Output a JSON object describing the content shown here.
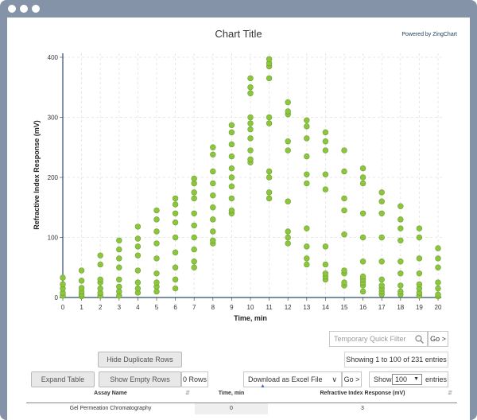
{
  "chart": {
    "title": "Chart Title",
    "powered_by": "Powered by ZingChart",
    "xlabel": "Time, min",
    "ylabel": "Refractive Index Response (mV)"
  },
  "chart_data": {
    "type": "scatter",
    "title": "Chart Title",
    "xlabel": "Time, min",
    "ylabel": "Refractive Index Response (mV)",
    "xlim": [
      0,
      20
    ],
    "ylim": [
      0,
      400
    ],
    "x_ticks": [
      "0",
      "1",
      "2",
      "3",
      "4",
      "5",
      "6",
      "7",
      "8",
      "9",
      "10",
      "11",
      "12",
      "13",
      "14",
      "15",
      "16",
      "17",
      "18",
      "19",
      "20"
    ],
    "y_ticks": [
      "0",
      "100",
      "200",
      "300",
      "400"
    ],
    "grid": true,
    "point_color": "#8cc63f",
    "points": [
      [
        0,
        3
      ],
      [
        0,
        8
      ],
      [
        0,
        15
      ],
      [
        0,
        22
      ],
      [
        0,
        33
      ],
      [
        1,
        2
      ],
      [
        1,
        5
      ],
      [
        1,
        10
      ],
      [
        1,
        16
      ],
      [
        1,
        28
      ],
      [
        1,
        45
      ],
      [
        2,
        3
      ],
      [
        2,
        8
      ],
      [
        2,
        15
      ],
      [
        2,
        25
      ],
      [
        2,
        30
      ],
      [
        2,
        55
      ],
      [
        2,
        70
      ],
      [
        3,
        3
      ],
      [
        3,
        10
      ],
      [
        3,
        18
      ],
      [
        3,
        30
      ],
      [
        3,
        50
      ],
      [
        3,
        65
      ],
      [
        3,
        80
      ],
      [
        3,
        95
      ],
      [
        4,
        8
      ],
      [
        4,
        15
      ],
      [
        4,
        25
      ],
      [
        4,
        45
      ],
      [
        4,
        70
      ],
      [
        4,
        85
      ],
      [
        4,
        98
      ],
      [
        4,
        118
      ],
      [
        5,
        10
      ],
      [
        5,
        18
      ],
      [
        5,
        25
      ],
      [
        5,
        40
      ],
      [
        5,
        65
      ],
      [
        5,
        90
      ],
      [
        5,
        110
      ],
      [
        5,
        130
      ],
      [
        5,
        145
      ],
      [
        6,
        15
      ],
      [
        6,
        30
      ],
      [
        6,
        50
      ],
      [
        6,
        75
      ],
      [
        6,
        100
      ],
      [
        6,
        125
      ],
      [
        6,
        140
      ],
      [
        6,
        155
      ],
      [
        6,
        165
      ],
      [
        7,
        50
      ],
      [
        7,
        60
      ],
      [
        7,
        80
      ],
      [
        7,
        100
      ],
      [
        7,
        120
      ],
      [
        7,
        140
      ],
      [
        7,
        165
      ],
      [
        7,
        175
      ],
      [
        7,
        190
      ],
      [
        7,
        198
      ],
      [
        8,
        90
      ],
      [
        8,
        95
      ],
      [
        8,
        110
      ],
      [
        8,
        130
      ],
      [
        8,
        150
      ],
      [
        8,
        170
      ],
      [
        8,
        190
      ],
      [
        8,
        210
      ],
      [
        8,
        238
      ],
      [
        8,
        250
      ],
      [
        9,
        140
      ],
      [
        9,
        145
      ],
      [
        9,
        165
      ],
      [
        9,
        185
      ],
      [
        9,
        200
      ],
      [
        9,
        215
      ],
      [
        9,
        235
      ],
      [
        9,
        255
      ],
      [
        9,
        275
      ],
      [
        9,
        287
      ],
      [
        10,
        225
      ],
      [
        10,
        230
      ],
      [
        10,
        245
      ],
      [
        10,
        265
      ],
      [
        10,
        280
      ],
      [
        10,
        290
      ],
      [
        10,
        300
      ],
      [
        10,
        340
      ],
      [
        10,
        350
      ],
      [
        10,
        365
      ],
      [
        11,
        165
      ],
      [
        11,
        175
      ],
      [
        11,
        200
      ],
      [
        11,
        210
      ],
      [
        11,
        290
      ],
      [
        11,
        300
      ],
      [
        11,
        365
      ],
      [
        11,
        385
      ],
      [
        11,
        390
      ],
      [
        11,
        397
      ],
      [
        12,
        90
      ],
      [
        12,
        100
      ],
      [
        12,
        110
      ],
      [
        12,
        160
      ],
      [
        12,
        245
      ],
      [
        12,
        260
      ],
      [
        12,
        305
      ],
      [
        12,
        310
      ],
      [
        12,
        325
      ],
      [
        13,
        55
      ],
      [
        13,
        65
      ],
      [
        13,
        85
      ],
      [
        13,
        115
      ],
      [
        13,
        190
      ],
      [
        13,
        205
      ],
      [
        13,
        235
      ],
      [
        13,
        265
      ],
      [
        13,
        285
      ],
      [
        13,
        295
      ],
      [
        14,
        30
      ],
      [
        14,
        35
      ],
      [
        14,
        40
      ],
      [
        14,
        55
      ],
      [
        14,
        85
      ],
      [
        14,
        180
      ],
      [
        14,
        205
      ],
      [
        14,
        245
      ],
      [
        14,
        260
      ],
      [
        14,
        275
      ],
      [
        15,
        20
      ],
      [
        15,
        25
      ],
      [
        15,
        40
      ],
      [
        15,
        45
      ],
      [
        15,
        105
      ],
      [
        15,
        145
      ],
      [
        15,
        165
      ],
      [
        15,
        210
      ],
      [
        15,
        245
      ],
      [
        16,
        10
      ],
      [
        16,
        20
      ],
      [
        16,
        25
      ],
      [
        16,
        30
      ],
      [
        16,
        35
      ],
      [
        16,
        60
      ],
      [
        16,
        100
      ],
      [
        16,
        140
      ],
      [
        16,
        190
      ],
      [
        16,
        200
      ],
      [
        16,
        215
      ],
      [
        17,
        5
      ],
      [
        17,
        10
      ],
      [
        17,
        15
      ],
      [
        17,
        20
      ],
      [
        17,
        30
      ],
      [
        17,
        60
      ],
      [
        17,
        100
      ],
      [
        17,
        140
      ],
      [
        17,
        160
      ],
      [
        17,
        175
      ],
      [
        18,
        5
      ],
      [
        18,
        10
      ],
      [
        18,
        20
      ],
      [
        18,
        40
      ],
      [
        18,
        60
      ],
      [
        18,
        95
      ],
      [
        18,
        115
      ],
      [
        18,
        130
      ],
      [
        18,
        152
      ],
      [
        19,
        3
      ],
      [
        19,
        8
      ],
      [
        19,
        15
      ],
      [
        19,
        22
      ],
      [
        19,
        40
      ],
      [
        19,
        65
      ],
      [
        19,
        100
      ],
      [
        19,
        115
      ],
      [
        20,
        2
      ],
      [
        20,
        5
      ],
      [
        20,
        15
      ],
      [
        20,
        25
      ],
      [
        20,
        50
      ],
      [
        20,
        65
      ],
      [
        20,
        82
      ]
    ]
  },
  "controls": {
    "quick_filter_placeholder": "Temporary Quick Filter",
    "go_label": "Go >",
    "showing_text": "Showing 1 to 100 of 231 entries",
    "hide_duplicate_label": "Hide Duplicate Rows",
    "expand_table_label": "Expand Table",
    "show_empty_label": "Show Empty Rows",
    "rows_count": "0 Rows",
    "download_label": "Download as Excel File",
    "download_go_label": "Go >",
    "show_label": "Show",
    "page_size": "100",
    "entries_label": "entries"
  },
  "table": {
    "columns": [
      "Assay Name",
      "Time, min",
      "Refractive Index Response (mV)"
    ],
    "rows": [
      [
        "Gel Permeation Chromatography",
        "0",
        "3"
      ]
    ]
  }
}
